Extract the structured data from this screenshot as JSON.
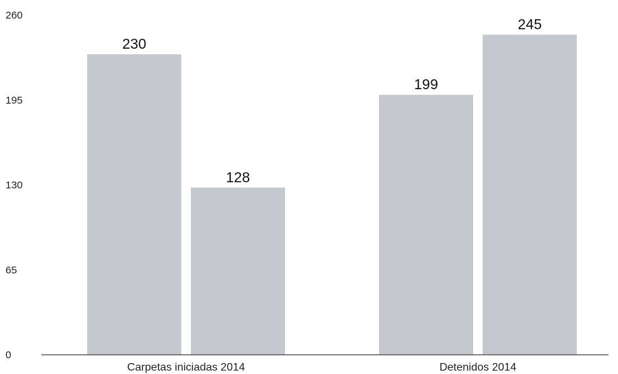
{
  "chart_data": {
    "type": "bar",
    "title": "",
    "xlabel": "",
    "ylabel": "",
    "ylim": [
      0,
      260
    ],
    "yticks": [
      0,
      65,
      130,
      195,
      260
    ],
    "grid": false,
    "legend": "none",
    "bar_color": "#c5c8cf",
    "categories": [
      "Carpetas iniciadas 2014",
      "Detenidos 2014"
    ],
    "series": [
      {
        "values": [
          230,
          199
        ]
      },
      {
        "values": [
          128,
          245
        ]
      }
    ]
  }
}
